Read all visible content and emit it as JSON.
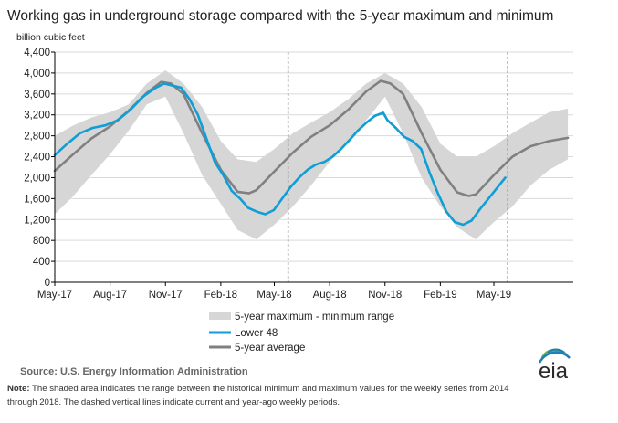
{
  "title": "Working gas in underground  storage compared with the 5-year maximum  and minimum",
  "units_label": "billion cubic feet",
  "source": "Source:  U.S. Energy Information Administration",
  "note_label": "Note:",
  "note_line1": " The shaded area indicates the range between the historical minimum and maximum values for the weekly series from 2014",
  "note_line2": "through 2018. The dashed vertical lines indicate current and year-ago weekly periods.",
  "logo": "eia",
  "colors": {
    "range": "#d6d6d6",
    "lower48": "#0f9ed5",
    "avg": "#808080",
    "grid": "#d9d9d9",
    "axis": "#000000",
    "dashed": "#9a9a9a",
    "logo_blue": "#1b7fbd",
    "logo_green": "#6db33f"
  },
  "chart_data": {
    "type": "line",
    "title": "Working gas in underground  storage compared with the 5-year maximum  and minimum",
    "ylabel": "billion cubic feet",
    "xlabel": "",
    "ylim": [
      0,
      4400
    ],
    "yticks": [
      0,
      400,
      800,
      1200,
      1600,
      2000,
      2400,
      2800,
      3200,
      3600,
      4000,
      4400
    ],
    "ytick_labels": [
      "0",
      "400",
      "800",
      "1,200",
      "1,600",
      "2,000",
      "2,400",
      "2,800",
      "3,200",
      "3,600",
      "4,000",
      "4,400"
    ],
    "xlim": [
      "2017-05-01",
      "2019-09-10"
    ],
    "xticks": [
      "2017-05-01",
      "2017-08-01",
      "2017-11-01",
      "2018-02-01",
      "2018-05-01",
      "2018-08-01",
      "2018-11-01",
      "2019-02-01",
      "2019-05-01"
    ],
    "xtick_labels": [
      "May-17",
      "Aug-17",
      "Nov-17",
      "Feb-18",
      "May-18",
      "Aug-18",
      "Nov-18",
      "Feb-19",
      "May-19"
    ],
    "grid": true,
    "legend_position": "bottom-center",
    "reference_lines": [
      "2018-05-24",
      "2019-05-24"
    ],
    "legend": [
      "5-year maximum - minimum range",
      "Lower 48",
      "5-year average"
    ],
    "series": [
      {
        "name": "5-year maximum - minimum range",
        "kind": "band",
        "x": [
          "2017-05-01",
          "2017-06-01",
          "2017-07-01",
          "2017-08-01",
          "2017-09-01",
          "2017-10-01",
          "2017-11-01",
          "2017-12-01",
          "2018-01-01",
          "2018-02-01",
          "2018-03-01",
          "2018-04-01",
          "2018-05-01",
          "2018-06-01",
          "2018-07-01",
          "2018-08-01",
          "2018-09-01",
          "2018-10-01",
          "2018-11-01",
          "2018-12-01",
          "2019-01-01",
          "2019-02-01",
          "2019-03-01",
          "2019-04-01",
          "2019-05-01",
          "2019-06-01",
          "2019-07-01",
          "2019-08-01",
          "2019-09-01"
        ],
        "max": [
          2800,
          3000,
          3150,
          3250,
          3400,
          3800,
          4050,
          3800,
          3350,
          2700,
          2350,
          2300,
          2550,
          2850,
          3050,
          3250,
          3500,
          3800,
          4000,
          3800,
          3350,
          2650,
          2400,
          2400,
          2600,
          2850,
          3050,
          3250,
          3320
        ],
        "min": [
          1300,
          1650,
          2050,
          2450,
          2900,
          3400,
          3550,
          2850,
          2050,
          1500,
          1000,
          820,
          1100,
          1450,
          1850,
          2300,
          2700,
          3100,
          3550,
          2850,
          2000,
          1450,
          1050,
          820,
          1150,
          1450,
          1850,
          2150,
          2350
        ]
      },
      {
        "name": "Lower 48",
        "x": [
          "2017-05-01",
          "2017-05-22",
          "2017-06-12",
          "2017-07-03",
          "2017-07-24",
          "2017-08-14",
          "2017-09-04",
          "2017-09-25",
          "2017-10-16",
          "2017-10-30",
          "2017-11-13",
          "2017-11-27",
          "2017-12-11",
          "2017-12-25",
          "2018-01-08",
          "2018-01-22",
          "2018-02-05",
          "2018-02-19",
          "2018-03-05",
          "2018-03-19",
          "2018-04-02",
          "2018-04-16",
          "2018-04-30",
          "2018-05-14",
          "2018-05-28",
          "2018-06-11",
          "2018-06-25",
          "2018-07-09",
          "2018-07-23",
          "2018-08-06",
          "2018-08-20",
          "2018-09-03",
          "2018-09-17",
          "2018-10-01",
          "2018-10-15",
          "2018-10-29",
          "2018-11-05",
          "2018-11-19",
          "2018-12-03",
          "2018-12-17",
          "2018-12-31",
          "2019-01-14",
          "2019-01-28",
          "2019-02-11",
          "2019-02-25",
          "2019-03-11",
          "2019-03-25",
          "2019-04-08",
          "2019-04-22",
          "2019-05-06",
          "2019-05-20"
        ],
        "y": [
          2430,
          2650,
          2850,
          2950,
          3000,
          3100,
          3300,
          3550,
          3720,
          3800,
          3760,
          3720,
          3500,
          3200,
          2750,
          2300,
          2050,
          1750,
          1600,
          1420,
          1350,
          1300,
          1380,
          1600,
          1820,
          2000,
          2150,
          2250,
          2300,
          2400,
          2550,
          2720,
          2900,
          3050,
          3180,
          3240,
          3100,
          2950,
          2780,
          2700,
          2550,
          2100,
          1700,
          1350,
          1150,
          1100,
          1180,
          1400,
          1600,
          1800,
          2000
        ]
      },
      {
        "name": "5-year average",
        "x": [
          "2017-05-01",
          "2017-06-01",
          "2017-07-01",
          "2017-08-01",
          "2017-09-01",
          "2017-10-01",
          "2017-10-25",
          "2017-11-10",
          "2017-12-01",
          "2018-01-01",
          "2018-02-01",
          "2018-03-01",
          "2018-03-20",
          "2018-04-01",
          "2018-05-01",
          "2018-06-01",
          "2018-07-01",
          "2018-08-01",
          "2018-09-01",
          "2018-10-01",
          "2018-10-25",
          "2018-11-10",
          "2018-12-01",
          "2019-01-01",
          "2019-02-01",
          "2019-03-01",
          "2019-03-20",
          "2019-04-01",
          "2019-05-01",
          "2019-06-01",
          "2019-07-01",
          "2019-08-01",
          "2019-09-01"
        ],
        "y": [
          2130,
          2450,
          2750,
          2980,
          3280,
          3620,
          3830,
          3800,
          3600,
          2850,
          2150,
          1730,
          1700,
          1760,
          2120,
          2480,
          2780,
          3000,
          3300,
          3650,
          3850,
          3800,
          3600,
          2850,
          2150,
          1720,
          1650,
          1680,
          2050,
          2400,
          2600,
          2700,
          2760
        ]
      }
    ]
  }
}
